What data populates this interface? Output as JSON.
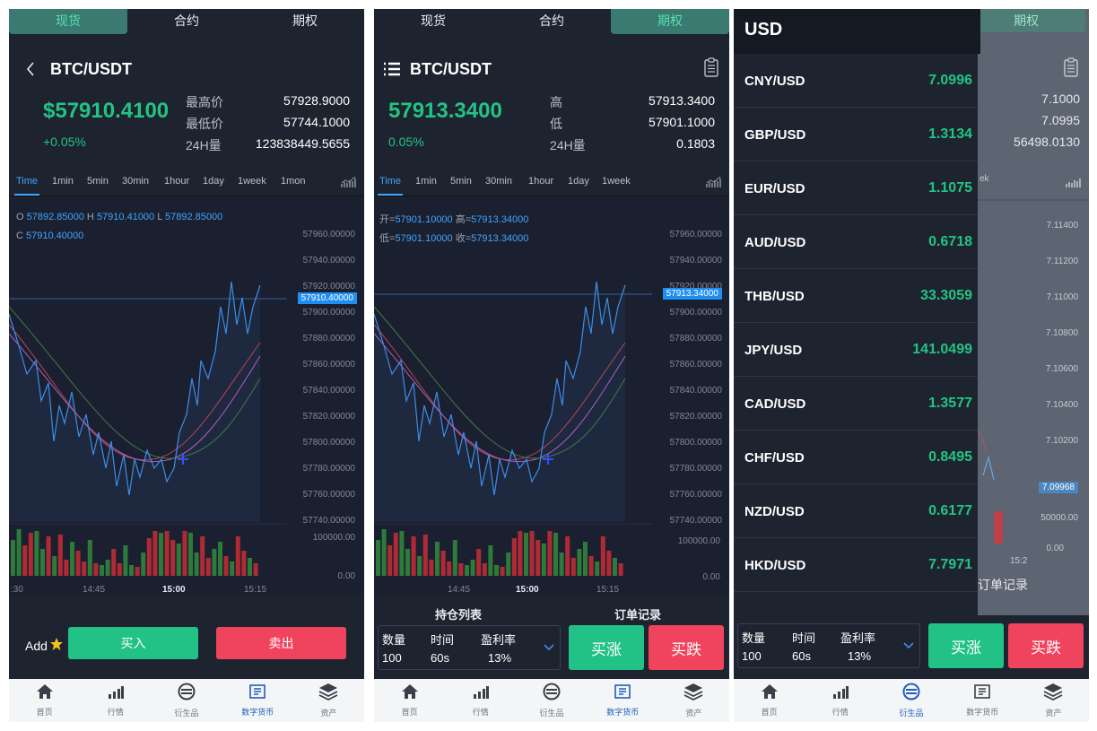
{
  "tabs": [
    "现货",
    "合约",
    "期权"
  ],
  "panel1": {
    "pair": "BTC/USDT",
    "price": "$57910.4100",
    "change": "+0.05%",
    "stats": [
      {
        "label": "最高价",
        "value": "57928.9000"
      },
      {
        "label": "最低价",
        "value": "57744.1000"
      },
      {
        "label": "24H量",
        "value": "123838449.5655"
      }
    ],
    "time_tabs": [
      "Time",
      "1min",
      "5min",
      "30min",
      "1hour",
      "1day",
      "1week",
      "1mon"
    ],
    "ohlc": {
      "o_label": "O",
      "o": "57892.85000",
      "h_label": "H",
      "h": "57910.41000",
      "l_label": "L",
      "l": "57892.85000",
      "c_label": "C",
      "c": "57910.40000"
    },
    "y_ticks": [
      "57960.00000",
      "57940.00000",
      "57920.00000",
      "57900.00000",
      "57880.00000",
      "57860.00000",
      "57840.00000",
      "57820.00000",
      "57800.00000",
      "57780.00000",
      "57760.00000",
      "57740.00000"
    ],
    "current_tag": "57910.40000",
    "vol_ticks": [
      "100000.00",
      "0.00"
    ],
    "x_ticks": [
      ":30",
      "14:45",
      "15:00",
      "15:15"
    ],
    "add_label": "Add",
    "buy": "买入",
    "sell": "卖出"
  },
  "panel2": {
    "pair": "BTC/USDT",
    "price": "57913.3400",
    "change": "0.05%",
    "stats": [
      {
        "label": "高",
        "value": "57913.3400"
      },
      {
        "label": "低",
        "value": "57901.1000"
      },
      {
        "label": "24H量",
        "value": "0.1803"
      }
    ],
    "time_tabs": [
      "Time",
      "1min",
      "5min",
      "30min",
      "1hour",
      "1day",
      "1week"
    ],
    "ohlc": {
      "open_label": "开=",
      "open": "57901.10000",
      "high_label": "高=",
      "high": "57913.34000",
      "low_label": "低=",
      "low": "57901.10000",
      "close_label": "收=",
      "close": "57913.34000"
    },
    "y_ticks": [
      "57960.00000",
      "57940.00000",
      "57920.00000",
      "57900.00000",
      "57880.00000",
      "57860.00000",
      "57840.00000",
      "57820.00000",
      "57800.00000",
      "57780.00000",
      "57760.00000",
      "57740.00000"
    ],
    "current_tag": "57913.34000",
    "vol_ticks": [
      "100000.00",
      "0.00"
    ],
    "x_ticks": [
      "14:45",
      "15:00",
      "15:15"
    ],
    "order_tabs": [
      "持仓列表",
      "订单记录"
    ],
    "order": {
      "qty_label": "数量",
      "qty": "100",
      "time_label": "时间",
      "time": "60s",
      "rate_label": "盈利率",
      "rate": "13%"
    },
    "up": "买涨",
    "down": "买跌"
  },
  "panel3": {
    "header": "USD",
    "rates": [
      {
        "pair": "CNY/USD",
        "rate": "7.0996"
      },
      {
        "pair": "GBP/USD",
        "rate": "1.3134"
      },
      {
        "pair": "EUR/USD",
        "rate": "1.1075"
      },
      {
        "pair": "AUD/USD",
        "rate": "0.6718"
      },
      {
        "pair": "THB/USD",
        "rate": "33.3059"
      },
      {
        "pair": "JPY/USD",
        "rate": "141.0499"
      },
      {
        "pair": "CAD/USD",
        "rate": "1.3577"
      },
      {
        "pair": "CHF/USD",
        "rate": "0.8495"
      },
      {
        "pair": "NZD/USD",
        "rate": "0.6177"
      },
      {
        "pair": "HKD/USD",
        "rate": "7.7971"
      }
    ],
    "bg_stats": [
      "7.1000",
      "7.0995",
      "56498.0130"
    ],
    "bg_tab_fragment": "ek",
    "bg_y_ticks": [
      "7.11400",
      "7.11200",
      "7.11000",
      "7.10800",
      "7.10600",
      "7.10400",
      "7.10200"
    ],
    "bg_tag": "7.09968",
    "bg_vol_ticks": [
      "50000.00",
      "0.00"
    ],
    "bg_x_tick": "15:2",
    "bg_order_tab": "订单记录",
    "order": {
      "qty_label": "数量",
      "qty": "100",
      "time_label": "时间",
      "time": "60s",
      "rate_label": "盈利率",
      "rate": "13%"
    },
    "up": "买涨",
    "down": "买跌"
  },
  "nav": [
    "首页",
    "行情",
    "衍生品",
    "数字货币",
    "资产"
  ],
  "colors": {
    "bg": "#1e2330",
    "green": "#23c483",
    "red": "#f0435d",
    "blue": "#3fa5ff",
    "teal_tab": "#3a7a70"
  }
}
